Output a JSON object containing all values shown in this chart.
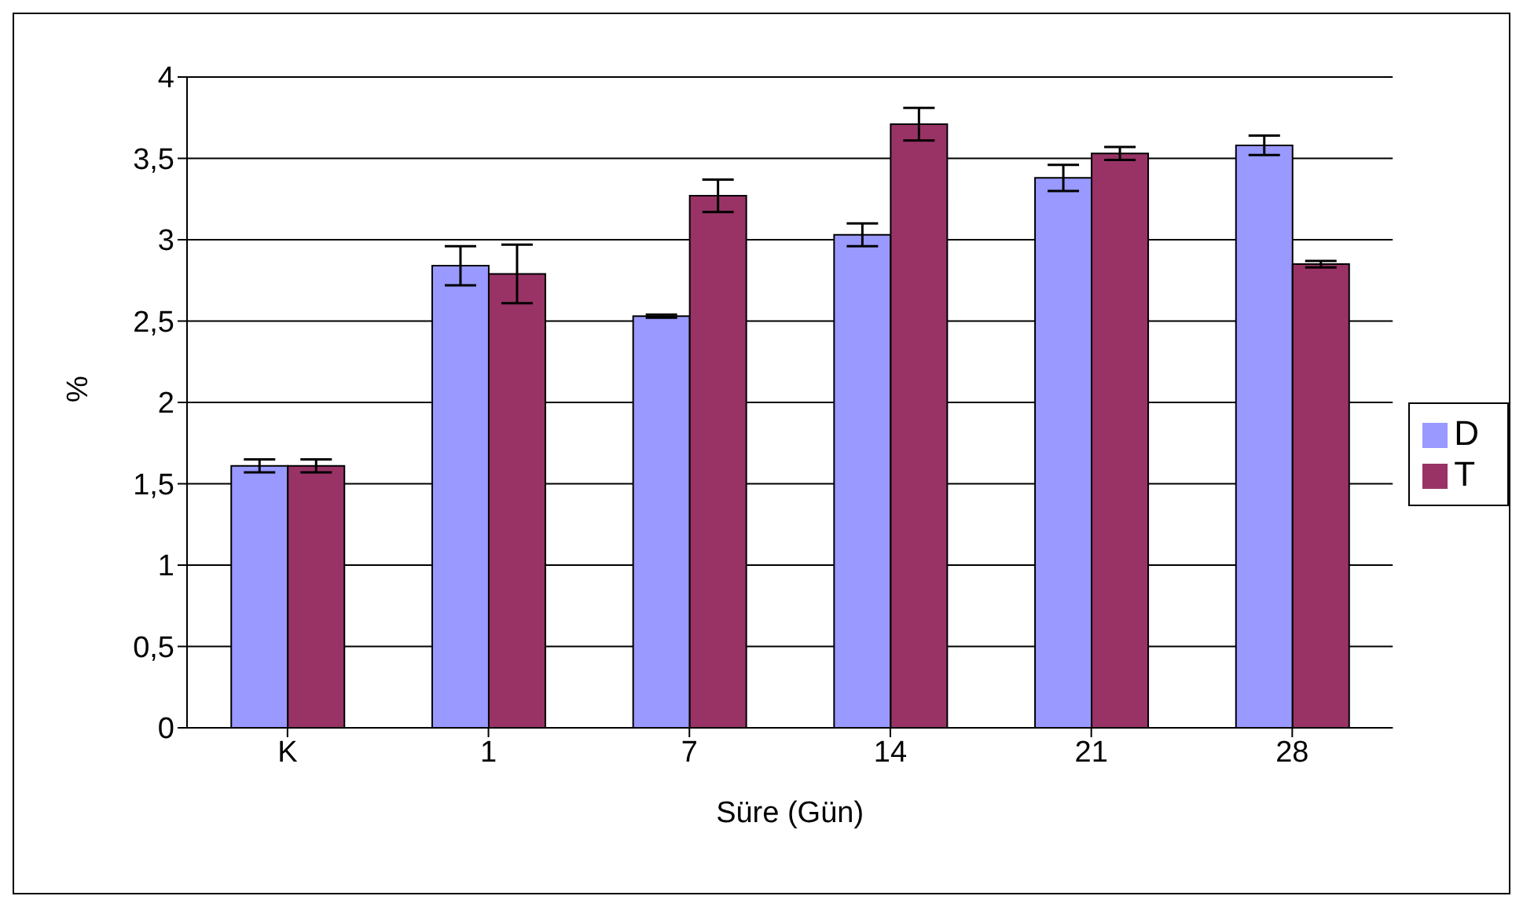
{
  "chart_data": {
    "type": "bar",
    "xlabel": "Süre (Gün)",
    "ylabel": "%",
    "categories": [
      "K",
      "1",
      "7",
      "14",
      "21",
      "28"
    ],
    "series": [
      {
        "name": "D",
        "color": "#9999ff",
        "values": [
          1.61,
          2.84,
          2.53,
          3.03,
          3.38,
          3.58
        ],
        "errors": [
          0.04,
          0.12,
          0.01,
          0.07,
          0.08,
          0.06
        ]
      },
      {
        "name": "T",
        "color": "#993366",
        "values": [
          1.61,
          2.79,
          3.27,
          3.71,
          3.53,
          2.85
        ],
        "errors": [
          0.04,
          0.18,
          0.1,
          0.1,
          0.04,
          0.02
        ]
      }
    ],
    "ylim": [
      0,
      4
    ],
    "yticks": [
      0,
      {
        "value": 0.5,
        "label": "0,5"
      },
      1,
      {
        "value": 1.5,
        "label": "1,5"
      },
      2,
      {
        "value": 2.5,
        "label": "2,5"
      },
      3,
      {
        "value": 3.5,
        "label": "3,5"
      },
      4
    ],
    "grid": "y",
    "legend": "right"
  }
}
